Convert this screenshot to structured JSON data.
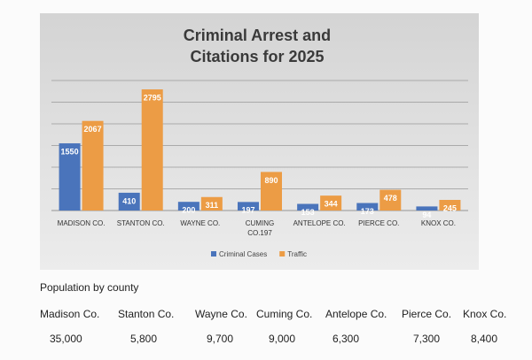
{
  "chart_data": {
    "type": "bar",
    "title": "Criminal Arrest and Citations for 2025",
    "categories": [
      "MADISON CO.",
      "STANTON CO.",
      "WAYNE CO.",
      "CUMING CO.197",
      "ANTELOPE CO.",
      "PIERCE CO.",
      "KNOX CO."
    ],
    "series": [
      {
        "name": "Criminal Cases",
        "color": "#4a74bb",
        "values": [
          1550,
          410,
          200,
          197,
          153,
          173,
          94
        ]
      },
      {
        "name": "Traffic",
        "color": "#ec9c45",
        "values": [
          2067,
          2795,
          311,
          890,
          344,
          478,
          245
        ]
      }
    ],
    "ylim": [
      0,
      3000
    ],
    "yticks": [
      0,
      500,
      1000,
      1500,
      2000,
      2500,
      3000
    ],
    "grid": true,
    "legend": "bottom"
  },
  "population": {
    "title": "Population by county",
    "counties": [
      "Madison Co.",
      "Stanton Co.",
      "Wayne Co.",
      "Cuming Co.",
      "Antelope Co.",
      "Pierce Co.",
      "Knox Co."
    ],
    "values": [
      "35,000",
      "5,800",
      "9,700",
      "9,000",
      "6,300",
      "7,300",
      "8,400"
    ]
  }
}
